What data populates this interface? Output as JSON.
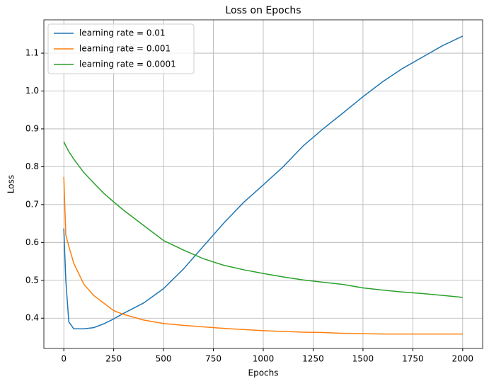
{
  "chart_data": {
    "type": "line",
    "title": "Loss on Epochs",
    "x_label": "Epochs",
    "y_label": "Loss",
    "x": [
      0,
      10,
      25,
      50,
      100,
      150,
      200,
      250,
      300,
      400,
      500,
      600,
      700,
      800,
      900,
      1000,
      1100,
      1200,
      1300,
      1400,
      1500,
      1600,
      1700,
      1800,
      1900,
      2000
    ],
    "series": [
      {
        "name": "learning rate = 0.01",
        "color": "#1f77b4",
        "values": [
          0.637,
          0.5,
          0.39,
          0.372,
          0.372,
          0.375,
          0.385,
          0.398,
          0.413,
          0.44,
          0.478,
          0.53,
          0.59,
          0.65,
          0.705,
          0.752,
          0.8,
          0.855,
          0.9,
          0.942,
          0.985,
          1.025,
          1.06,
          1.09,
          1.12,
          1.145
        ]
      },
      {
        "name": "learning rate = 0.001",
        "color": "#ff7f0e",
        "values": [
          0.773,
          0.62,
          0.59,
          0.545,
          0.49,
          0.46,
          0.44,
          0.42,
          0.41,
          0.395,
          0.386,
          0.381,
          0.377,
          0.373,
          0.37,
          0.367,
          0.365,
          0.363,
          0.362,
          0.36,
          0.359,
          0.358,
          0.358,
          0.358,
          0.358,
          0.358
        ]
      },
      {
        "name": "learning rate = 0.0001",
        "color": "#2ca02c",
        "values": [
          0.866,
          0.855,
          0.84,
          0.82,
          0.785,
          0.757,
          0.73,
          0.707,
          0.685,
          0.645,
          0.605,
          0.58,
          0.557,
          0.54,
          0.528,
          0.518,
          0.509,
          0.501,
          0.495,
          0.489,
          0.48,
          0.474,
          0.469,
          0.465,
          0.46,
          0.455
        ]
      }
    ],
    "xlim": [
      -100,
      2100
    ],
    "xticks": [
      0,
      250,
      500,
      750,
      1000,
      1250,
      1500,
      1750,
      2000
    ],
    "ylim": [
      0.32,
      1.188
    ],
    "yticks": [
      0.4,
      0.5,
      0.6,
      0.7,
      0.8,
      0.9,
      {
        "value": 1,
        "label": "1.0"
      },
      1.1
    ],
    "grid": true,
    "legend": "upper-left"
  }
}
